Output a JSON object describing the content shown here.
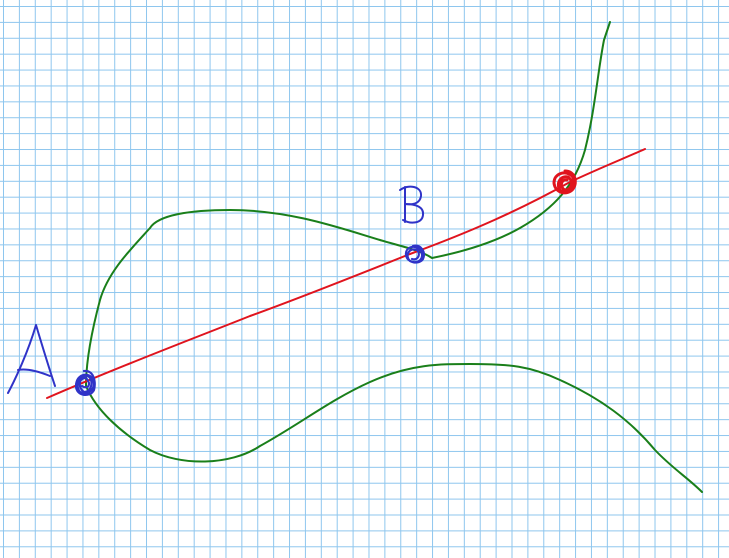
{
  "labels": {
    "point_a": "A",
    "point_b": "B"
  },
  "colors": {
    "grid": "#8ec6ee",
    "curve": "#1a7f1a",
    "line": "#e0141e",
    "point_a": "#2f33c8",
    "point_b": "#2f33c8",
    "point_c": "#e0141e"
  }
}
